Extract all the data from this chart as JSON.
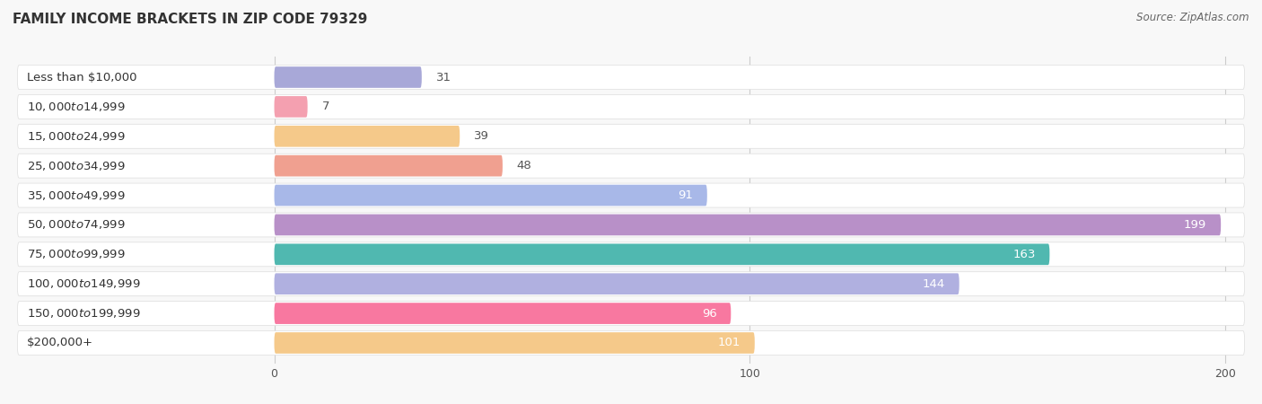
{
  "title": "Family Income Brackets in Zip Code 79329",
  "title_display": "FAMILY INCOME BRACKETS IN ZIP CODE 79329",
  "source": "Source: ZipAtlas.com",
  "categories": [
    "Less than $10,000",
    "$10,000 to $14,999",
    "$15,000 to $24,999",
    "$25,000 to $34,999",
    "$35,000 to $49,999",
    "$50,000 to $74,999",
    "$75,000 to $99,999",
    "$100,000 to $149,999",
    "$150,000 to $199,999",
    "$200,000+"
  ],
  "values": [
    31,
    7,
    39,
    48,
    91,
    199,
    163,
    144,
    96,
    101
  ],
  "bar_colors": [
    "#a8a8d8",
    "#f4a0b0",
    "#f5c98a",
    "#f0a090",
    "#a8b8e8",
    "#b890c8",
    "#50b8b0",
    "#b0b0e0",
    "#f878a0",
    "#f5c98a"
  ],
  "xlim": [
    0,
    200
  ],
  "xticks": [
    0,
    100,
    200
  ],
  "title_fontsize": 11,
  "label_fontsize": 9.5,
  "tick_fontsize": 9,
  "source_fontsize": 8.5,
  "background_color": "#f8f8f8",
  "pill_color": "#ffffff",
  "grid_color": "#cccccc",
  "row_sep_color": "#e8e8e8"
}
